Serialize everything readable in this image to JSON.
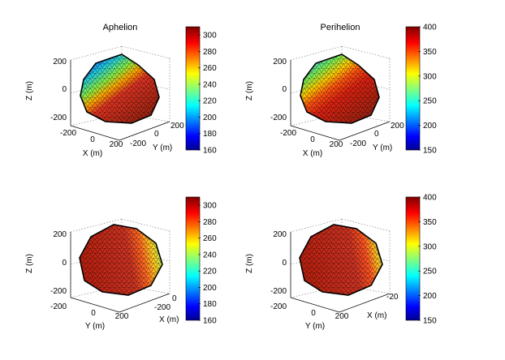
{
  "chart_data": [
    {
      "type": "surface3d",
      "title": "Aphelion",
      "xlabel": "X (m)",
      "ylabel": "Y (m)",
      "zlabel": "Z (m)",
      "x_ticks": [
        "-200",
        "0",
        "200"
      ],
      "y_ticks": [
        "-200",
        "0",
        "200"
      ],
      "z_ticks": [
        "200",
        "0",
        "-200"
      ],
      "view": "x-front",
      "colorbar": {
        "min": 160,
        "max": 310,
        "ticks": [
          "300",
          "280",
          "260",
          "240",
          "220",
          "200",
          "180",
          "160"
        ],
        "tick_values": [
          300,
          280,
          260,
          240,
          220,
          200,
          180,
          160
        ]
      },
      "surface_note": "cool upper-left (about 200-230), hot lower-right (about 290-310)"
    },
    {
      "type": "surface3d",
      "title": "Perihelion",
      "xlabel": "X (m)",
      "ylabel": "Y (m)",
      "zlabel": "Z (m)",
      "x_ticks": [
        "-200",
        "0",
        "200"
      ],
      "y_ticks": [
        "-200",
        "0",
        "200"
      ],
      "z_ticks": [
        "200",
        "0",
        "-200"
      ],
      "view": "x-front",
      "colorbar": {
        "min": 150,
        "max": 400,
        "ticks": [
          "400",
          "350",
          "300",
          "250",
          "200",
          "150"
        ],
        "tick_values": [
          400,
          350,
          300,
          250,
          200,
          150
        ]
      },
      "surface_note": "warmer upper-left (about 280-320), hot lower-right (about 370-400)"
    },
    {
      "type": "surface3d",
      "title": "",
      "xlabel": "X (m)",
      "ylabel": "Y (m)",
      "zlabel": "Z (m)",
      "x_ticks": [
        "-200",
        "0",
        "200"
      ],
      "y_ticks": [
        "-200",
        "0",
        "200"
      ],
      "z_ticks": [
        "200",
        "0",
        "-200"
      ],
      "view": "y-front",
      "colorbar": {
        "min": 160,
        "max": 310,
        "ticks": [
          "300",
          "280",
          "260",
          "240",
          "220",
          "200",
          "180",
          "160"
        ],
        "tick_values": [
          300,
          280,
          260,
          240,
          220,
          200,
          180,
          160
        ]
      },
      "surface_note": "mostly hot (about 290-310), cooler right limb (about 250-270)"
    },
    {
      "type": "surface3d",
      "title": "",
      "xlabel": "X (m)",
      "ylabel": "Y (m)",
      "zlabel": "Z (m)",
      "x_ticks": [
        "-20"
      ],
      "y_ticks": [
        "-200",
        "0",
        "200"
      ],
      "z_ticks": [
        "200",
        "0",
        "-200"
      ],
      "view": "y-front",
      "colorbar": {
        "min": 150,
        "max": 400,
        "ticks": [
          "400",
          "350",
          "300",
          "250",
          "200",
          "150"
        ],
        "tick_values": [
          400,
          350,
          300,
          250,
          200,
          150
        ]
      },
      "surface_note": "mostly hot (about 370-400), cooler right limb (about 300-330)"
    }
  ]
}
